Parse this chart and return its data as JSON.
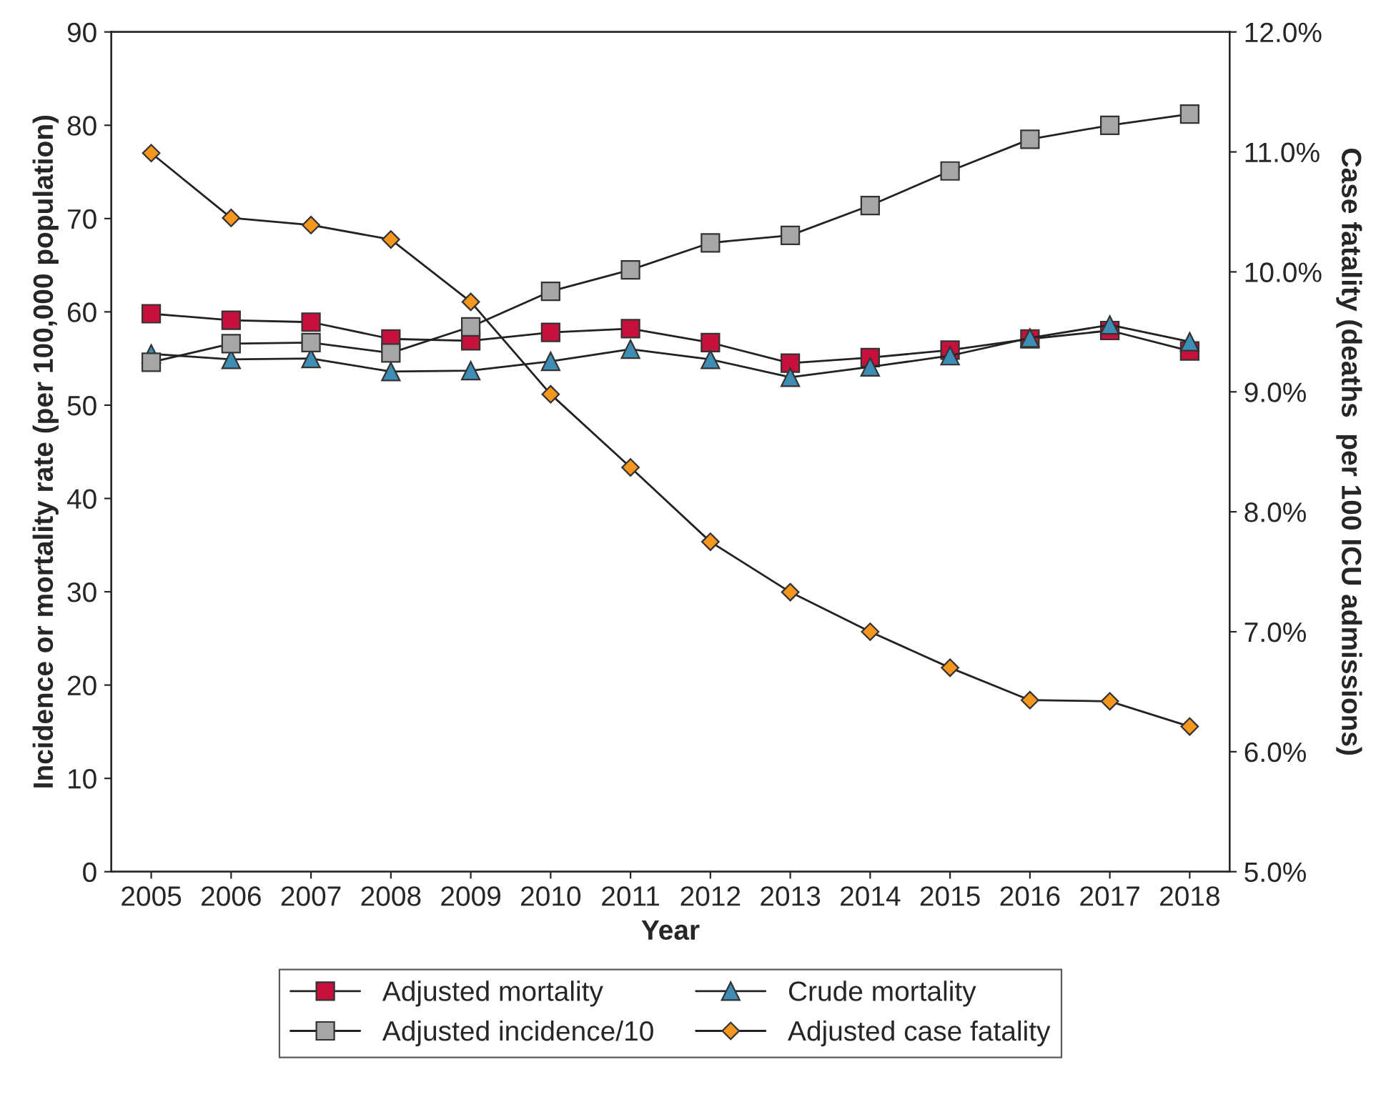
{
  "chart_data": {
    "type": "line",
    "xlabel": "Year",
    "ylabel": "Incidence or mortality rate (per 100,000 population)",
    "y2label": "Case fatality (deaths  per 100 ICU admissions)",
    "categories": [
      "2005",
      "2006",
      "2007",
      "2008",
      "2009",
      "2010",
      "2011",
      "2012",
      "2013",
      "2014",
      "2015",
      "2016",
      "2017",
      "2018"
    ],
    "series": [
      {
        "name": "Adjusted mortality",
        "color": "#c8103c",
        "marker": "square",
        "values": [
          59.8,
          59.1,
          58.9,
          57.1,
          56.9,
          57.8,
          58.2,
          56.7,
          54.5,
          55.1,
          55.9,
          57.1,
          58.0,
          55.8
        ]
      },
      {
        "name": "Crude mortality",
        "color": "#3d8db5",
        "marker": "triangle",
        "values": [
          55.5,
          54.9,
          55.0,
          53.6,
          53.7,
          54.7,
          56.0,
          54.9,
          53.0,
          54.1,
          55.3,
          57.2,
          58.6,
          56.8
        ]
      },
      {
        "name": "Adjusted incidence/10",
        "color": "#a6a6a6",
        "marker": "square",
        "values": [
          54.6,
          56.6,
          56.7,
          55.6,
          58.4,
          62.2,
          64.5,
          67.4,
          68.2,
          71.4,
          75.1,
          78.5,
          80.0,
          81.2
        ]
      },
      {
        "name": "Adjusted case fatality",
        "color": "#f5961e",
        "marker": "diamond",
        "axis": "y2",
        "values": [
          10.99,
          10.45,
          10.39,
          10.27,
          9.75,
          8.98,
          8.37,
          7.75,
          7.33,
          7.0,
          6.7,
          6.43,
          6.42,
          6.21
        ]
      }
    ],
    "ylim": [
      0,
      90
    ],
    "yticks": [
      0,
      10,
      20,
      30,
      40,
      50,
      60,
      70,
      80,
      90
    ],
    "y2lim": [
      5,
      12
    ],
    "y2ticks": [
      {
        "value": 5,
        "label": "5.0%"
      },
      {
        "value": 6,
        "label": "6.0%"
      },
      {
        "value": 7,
        "label": "7.0%"
      },
      {
        "value": 8,
        "label": "8.0%"
      },
      {
        "value": 9,
        "label": "9.0%"
      },
      {
        "value": 10,
        "label": "10.0%"
      },
      {
        "value": 11,
        "label": "11.0%"
      },
      {
        "value": 12,
        "label": "12.0%"
      }
    ],
    "grid": false,
    "legend": "bottom",
    "line_style": "solid"
  }
}
